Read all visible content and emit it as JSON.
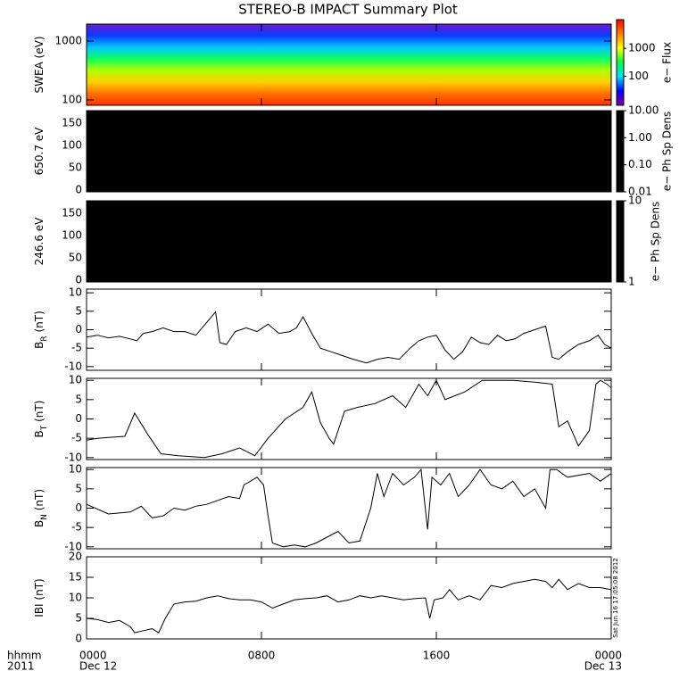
{
  "title": "STEREO-B IMPACT Summary Plot",
  "xaxis": {
    "xlim": [
      0,
      24
    ],
    "xticks": [
      {
        "value": 0,
        "label": "0000"
      },
      {
        "value": 8,
        "label": "0800"
      },
      {
        "value": 16,
        "label": "1600"
      },
      {
        "value": 24,
        "label": "0000"
      }
    ],
    "dates": [
      {
        "value": 0,
        "label": "Dec 12"
      },
      {
        "value": 24,
        "label": "Dec 13"
      }
    ],
    "format_label": "hhmm",
    "year_label": "2011"
  },
  "timestamp": "Sat Jun 16 17:05:08 2012",
  "chart_data": [
    {
      "type": "spectrogram",
      "ylabel": [
        "SWEA (eV)"
      ],
      "log": true,
      "ylim": [
        81,
        1940
      ],
      "yticks": [
        100,
        1000
      ],
      "colorbar": {
        "label": "e− Flux",
        "log": true,
        "clim": [
          9,
          10700
        ],
        "ticks": [
          100,
          1000
        ],
        "colors": [
          "#7a00a8",
          "#0000ff",
          "#00e0ff",
          "#00ff40",
          "#ffff00",
          "#ff8000",
          "#ff0000"
        ]
      }
    },
    {
      "type": "image",
      "ylabel": [
        "650.7 eV"
      ],
      "ylim": [
        -4,
        178
      ],
      "yticks": [
        0,
        50,
        100,
        150
      ],
      "color": "#000000",
      "colorbar": {
        "label": "e− Ph Sp Dens",
        "log": true,
        "clim": [
          0.01,
          10
        ],
        "ticks": [
          {
            "value": 0.01,
            "label": "0.01"
          },
          {
            "value": 0.1,
            "label": "0.10"
          },
          {
            "value": 1,
            "label": "1.00"
          },
          {
            "value": 10,
            "label": "10.00"
          }
        ],
        "colors": [
          "#000000"
        ]
      }
    },
    {
      "type": "image",
      "ylabel": [
        "246.6 eV"
      ],
      "ylim": [
        -4,
        178
      ],
      "yticks": [
        0,
        50,
        100,
        150
      ],
      "color": "#000000",
      "colorbar": {
        "label": "e− Ph Sp Dens",
        "log": true,
        "clim": [
          1,
          10
        ],
        "ticks": [
          1,
          10
        ],
        "colors": [
          "#000000"
        ]
      }
    },
    {
      "type": "line",
      "ylabel": [
        "B",
        "R",
        "(nT)"
      ],
      "ylim": [
        -11,
        11
      ],
      "yticks": [
        -10,
        -5,
        0,
        5,
        10
      ],
      "color": "#000000",
      "x": [
        0,
        0.5,
        1,
        1.5,
        2,
        2.3,
        2.6,
        3,
        3.5,
        4,
        4.5,
        5,
        5.5,
        5.9,
        6.1,
        6.4,
        6.8,
        7.3,
        7.8,
        8.3,
        8.8,
        9.3,
        9.6,
        9.9,
        10.3,
        10.7,
        11.2,
        11.7,
        12.2,
        12.8,
        13.3,
        13.8,
        14.3,
        14.8,
        15.2,
        15.6,
        16,
        16.4,
        16.8,
        17.2,
        17.6,
        18,
        18.4,
        18.8,
        19.2,
        19.6,
        20,
        20.5,
        21,
        21.3,
        21.6,
        22,
        22.5,
        23,
        23.4,
        23.7,
        24
      ],
      "values": [
        -2,
        -1.5,
        -2.2,
        -1.8,
        -2.5,
        -3,
        -1,
        -0.5,
        0.5,
        -0.5,
        -0.5,
        -1.5,
        2,
        4.8,
        -3.5,
        -4,
        -0.5,
        0.5,
        -0.5,
        1.5,
        -1,
        -0.5,
        0.5,
        3.5,
        -1,
        -5,
        -6,
        -7,
        -8,
        -9,
        -8,
        -7.5,
        -8,
        -5,
        -3,
        -2,
        -1.5,
        -5.5,
        -8,
        -6,
        -2,
        -3.5,
        -4,
        -1.5,
        -3,
        -2.5,
        -1,
        0,
        1,
        -7.5,
        -8,
        -6,
        -4,
        -3,
        -1.5,
        -4,
        -5
      ]
    },
    {
      "type": "line",
      "ylabel": [
        "B",
        "T",
        "(nT)"
      ],
      "ylim": [
        -10.5,
        10.5
      ],
      "yticks": [
        -10,
        -5,
        0,
        5,
        10
      ],
      "color": "#000000",
      "x": [
        0,
        0.5,
        1,
        1.75,
        2.2,
        2.8,
        3.4,
        4.2,
        5.4,
        6.2,
        7,
        7.7,
        8.3,
        9.1,
        9.9,
        10.3,
        10.7,
        11.1,
        11.3,
        11.8,
        12.4,
        13.2,
        14,
        14.6,
        15.2,
        15.6,
        16,
        16.4,
        17.3,
        18.1,
        18.9,
        19.5,
        20.5,
        21.3,
        21.6,
        22,
        22.5,
        23,
        23.3,
        23.5,
        23.8,
        24
      ],
      "values": [
        -5.5,
        -5,
        -4.8,
        -4.5,
        1.5,
        -4,
        -9,
        -9.5,
        -10,
        -9,
        -7.5,
        -9.5,
        -5,
        0,
        3,
        7,
        -1,
        -5,
        -6.5,
        2,
        3,
        4,
        6,
        3,
        9,
        6,
        10,
        5,
        7,
        10,
        10,
        10,
        9.5,
        9,
        -2,
        -0.5,
        -7,
        -3,
        9,
        10,
        9,
        8
      ]
    },
    {
      "type": "line",
      "ylabel": [
        "B",
        "N",
        "(nT)"
      ],
      "ylim": [
        -10.5,
        10.5
      ],
      "yticks": [
        -10,
        -5,
        0,
        5,
        10
      ],
      "color": "#000000",
      "x": [
        0,
        1,
        2,
        2.5,
        3,
        3.5,
        4,
        4.5,
        5,
        5.5,
        6,
        6.5,
        7,
        7.2,
        7.5,
        7.8,
        8.1,
        8.3,
        8.5,
        9,
        9.5,
        10,
        10.5,
        11,
        11.5,
        12,
        12.5,
        13,
        13.3,
        13.6,
        14,
        14.5,
        15,
        15.3,
        15.6,
        15.8,
        16.2,
        16.6,
        17,
        17.5,
        18,
        18.5,
        19,
        19.5,
        20,
        20.5,
        21,
        21.2,
        21.5,
        22,
        23,
        23.5,
        24
      ],
      "values": [
        1,
        -1.5,
        -1,
        0.5,
        -2.5,
        -2,
        0,
        -0.5,
        0.5,
        1,
        2,
        3,
        2.5,
        6,
        7,
        8,
        6,
        -2,
        -9,
        -10,
        -9.5,
        -10,
        -9,
        -7.5,
        -6,
        -9,
        -8.5,
        0,
        9,
        3,
        9,
        6,
        8,
        10,
        -5.5,
        8,
        6,
        9,
        3,
        6,
        10,
        6,
        5,
        7,
        3,
        5,
        0,
        10,
        10,
        8,
        9,
        7,
        9
      ]
    },
    {
      "type": "line",
      "ylabel": [
        "IBI (nT)"
      ],
      "ylim": [
        0,
        20
      ],
      "yticks": [
        0,
        5,
        10,
        15,
        20
      ],
      "color": "#000000",
      "x": [
        0,
        0.5,
        1,
        1.5,
        2,
        2.2,
        2.6,
        3,
        3.3,
        3.6,
        4,
        4.5,
        5,
        5.5,
        6,
        6.5,
        7,
        7.5,
        8,
        8.5,
        9,
        9.5,
        10,
        10.5,
        11,
        11.5,
        12,
        12.5,
        13,
        13.5,
        14,
        14.5,
        15,
        15.5,
        15.7,
        15.9,
        16.3,
        16.6,
        17,
        17.5,
        18,
        18.5,
        19,
        19.5,
        20,
        20.5,
        21,
        21.3,
        21.6,
        22,
        22.5,
        23,
        23.5,
        24
      ],
      "values": [
        5,
        4.7,
        4,
        4.5,
        3,
        1.5,
        2,
        2.5,
        1.5,
        5,
        8.5,
        9,
        9.2,
        10,
        10.5,
        9.8,
        9.5,
        9.5,
        9,
        7.5,
        8.5,
        9.5,
        9.8,
        10,
        10.5,
        9,
        9.5,
        10.5,
        10,
        10.5,
        10,
        9.5,
        9.8,
        10,
        5,
        9.5,
        10,
        12,
        9.5,
        10.5,
        9.5,
        13,
        12.5,
        13.5,
        14,
        14.5,
        14,
        12.5,
        14.5,
        12,
        13.5,
        12.5,
        12.5,
        12
      ]
    }
  ]
}
